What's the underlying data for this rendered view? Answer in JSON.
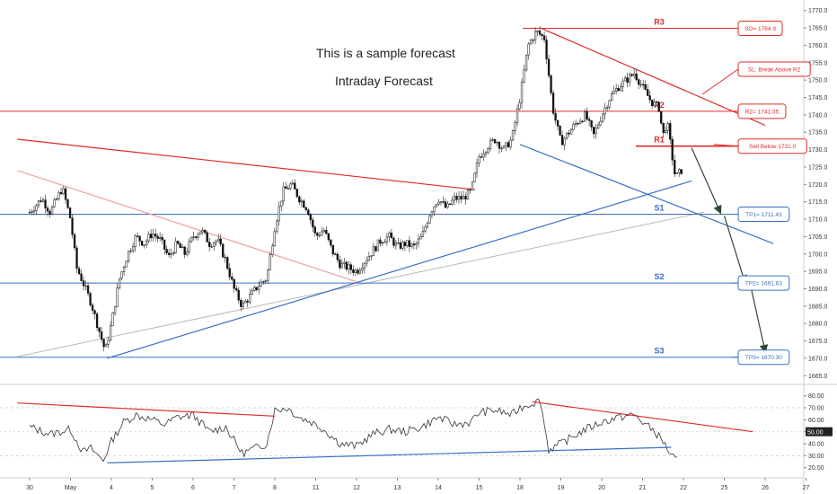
{
  "overlay": {
    "line1": "This is a sample forecast",
    "line2": "Intraday Forecast"
  },
  "colors": {
    "candle": "#000000",
    "red": "#e02a2a",
    "blue": "#3a6fc4",
    "grey": "#b8b8b8",
    "arrow": "#2e4a2e",
    "grid": "#eeeeee"
  },
  "chart_data": [
    {
      "type": "candlestick",
      "title": "",
      "ylim": [
        1663,
        1772
      ],
      "y_ticks": [
        1665.0,
        1670.0,
        1675.0,
        1680.0,
        1685.0,
        1690.0,
        1695.0,
        1700.0,
        1705.0,
        1710.0,
        1715.0,
        1720.0,
        1725.0,
        1730.0,
        1735.0,
        1740.0,
        1745.0,
        1750.0,
        1755.0,
        1760.0,
        1765.0,
        1770.0
      ],
      "x_tick_labels": [
        "30",
        "May",
        "4",
        "5",
        "6",
        "7",
        "8",
        "11",
        "12",
        "13",
        "14",
        "15",
        "18",
        "19",
        "20",
        "21",
        "22",
        "25",
        "26",
        "27"
      ],
      "x_tick_index": [
        0,
        1,
        2,
        3,
        4,
        5,
        6,
        7,
        8,
        9,
        10,
        11,
        12,
        13,
        14,
        15,
        16,
        17,
        18,
        19
      ],
      "price_path": [
        [
          0,
          1712
        ],
        [
          0.3,
          1716
        ],
        [
          0.5,
          1712
        ],
        [
          0.8,
          1719
        ],
        [
          1.0,
          1710
        ],
        [
          1.15,
          1696
        ],
        [
          1.3,
          1692
        ],
        [
          1.5,
          1686
        ],
        [
          1.7,
          1678
        ],
        [
          1.85,
          1672
        ],
        [
          2.0,
          1680
        ],
        [
          2.2,
          1693
        ],
        [
          2.4,
          1700
        ],
        [
          2.6,
          1705
        ],
        [
          2.8,
          1703
        ],
        [
          3.0,
          1706
        ],
        [
          3.2,
          1704
        ],
        [
          3.4,
          1699
        ],
        [
          3.6,
          1703
        ],
        [
          3.8,
          1700
        ],
        [
          4.0,
          1705
        ],
        [
          4.2,
          1707
        ],
        [
          4.4,
          1703
        ],
        [
          4.6,
          1704
        ],
        [
          4.8,
          1698
        ],
        [
          5.0,
          1690
        ],
        [
          5.2,
          1685
        ],
        [
          5.4,
          1688
        ],
        [
          5.6,
          1691
        ],
        [
          5.8,
          1693
        ],
        [
          6.0,
          1708
        ],
        [
          6.2,
          1718
        ],
        [
          6.4,
          1720
        ],
        [
          6.6,
          1716
        ],
        [
          6.8,
          1713
        ],
        [
          7.0,
          1705
        ],
        [
          7.2,
          1707
        ],
        [
          7.4,
          1701
        ],
        [
          7.6,
          1697
        ],
        [
          7.8,
          1696
        ],
        [
          8.0,
          1695
        ],
        [
          8.2,
          1698
        ],
        [
          8.4,
          1701
        ],
        [
          8.6,
          1704
        ],
        [
          8.8,
          1705
        ],
        [
          9.0,
          1702
        ],
        [
          9.2,
          1703
        ],
        [
          9.4,
          1702
        ],
        [
          9.6,
          1705
        ],
        [
          9.8,
          1712
        ],
        [
          10.0,
          1716
        ],
        [
          10.2,
          1713
        ],
        [
          10.4,
          1716
        ],
        [
          10.6,
          1716
        ],
        [
          10.8,
          1718
        ],
        [
          11.0,
          1728
        ],
        [
          11.2,
          1731
        ],
        [
          11.4,
          1733
        ],
        [
          11.6,
          1730
        ],
        [
          11.8,
          1733
        ],
        [
          12.0,
          1745
        ],
        [
          12.2,
          1760
        ],
        [
          12.4,
          1764
        ],
        [
          12.6,
          1762
        ],
        [
          12.8,
          1742
        ],
        [
          13.0,
          1732
        ],
        [
          13.2,
          1735
        ],
        [
          13.4,
          1738
        ],
        [
          13.6,
          1740
        ],
        [
          13.8,
          1734
        ],
        [
          14.0,
          1740
        ],
        [
          14.2,
          1745
        ],
        [
          14.4,
          1748
        ],
        [
          14.6,
          1750
        ],
        [
          14.8,
          1752
        ],
        [
          15.0,
          1748
        ],
        [
          15.2,
          1744
        ],
        [
          15.4,
          1742
        ],
        [
          15.5,
          1734
        ],
        [
          15.6,
          1738
        ],
        [
          15.8,
          1722
        ],
        [
          15.95,
          1724
        ]
      ],
      "annotations": [
        {
          "label": "R3",
          "kind": "resistance",
          "value": 1764.9
        },
        {
          "label": "R2",
          "kind": "resistance",
          "value": 1741.05
        },
        {
          "label": "R1",
          "kind": "resistance",
          "value": 1731.0
        },
        {
          "label": "S1",
          "kind": "support",
          "value": 1711.43
        },
        {
          "label": "S2",
          "kind": "support",
          "value": 1691.63
        },
        {
          "label": "S3",
          "kind": "support",
          "value": 1670.3
        }
      ],
      "callouts": [
        {
          "text": "SO= 1764.9",
          "kind": "red",
          "value": 1764.9
        },
        {
          "text": "SL: Break Above R2",
          "kind": "red",
          "value": 1749.5
        },
        {
          "text": "R2= 1741.05",
          "kind": "red",
          "value": 1741.05
        },
        {
          "text": "Sell Below 1731.0",
          "kind": "red",
          "value": 1731.0
        },
        {
          "text": "TP1= 1711.43",
          "kind": "blue",
          "value": 1711.43
        },
        {
          "text": "TP2= 1691.63",
          "kind": "blue",
          "value": 1691.63
        },
        {
          "text": "TP3= 1670.30",
          "kind": "blue",
          "value": 1670.3
        }
      ],
      "trendlines": [
        {
          "color": "red",
          "from": [
            -0.3,
            1733
          ],
          "to": [
            10.9,
            1718.5
          ]
        },
        {
          "color": "lightred",
          "from": [
            -0.3,
            1724
          ],
          "to": [
            8.0,
            1692
          ]
        },
        {
          "color": "blue",
          "from": [
            1.9,
            1670
          ],
          "to": [
            16.2,
            1721
          ]
        },
        {
          "color": "blue",
          "from": [
            12.0,
            1731.5
          ],
          "to": [
            18.2,
            1703
          ]
        },
        {
          "color": "red",
          "from": [
            12.5,
            1765
          ],
          "to": [
            18.0,
            1737
          ]
        },
        {
          "color": "grey",
          "from": [
            -0.3,
            1670.5
          ],
          "to": [
            16.5,
            1712
          ]
        }
      ],
      "forecast_arrows": [
        {
          "from": [
            16.2,
            1730.5
          ],
          "to": [
            16.9,
            1712
          ]
        },
        {
          "from": [
            17.0,
            1711
          ],
          "to": [
            17.5,
            1692
          ]
        },
        {
          "from": [
            17.65,
            1690.5
          ],
          "to": [
            18.0,
            1672
          ]
        }
      ],
      "current_price_label": ""
    },
    {
      "type": "line",
      "title": "",
      "ylim": [
        13,
        88
      ],
      "y_ticks": [
        20.0,
        30.0,
        40.0,
        50.0,
        60.0,
        70.0,
        80.0
      ],
      "highlight_label": "50.00",
      "rsi_path": [
        [
          0,
          54
        ],
        [
          0.5,
          48
        ],
        [
          1.0,
          52
        ],
        [
          1.3,
          33
        ],
        [
          1.5,
          36
        ],
        [
          1.8,
          26
        ],
        [
          2.0,
          42
        ],
        [
          2.3,
          58
        ],
        [
          2.6,
          64
        ],
        [
          3.0,
          60
        ],
        [
          3.3,
          56
        ],
        [
          3.6,
          62
        ],
        [
          4.0,
          64
        ],
        [
          4.4,
          50
        ],
        [
          4.8,
          54
        ],
        [
          5.2,
          32
        ],
        [
          5.5,
          36
        ],
        [
          5.8,
          40
        ],
        [
          6.0,
          68
        ],
        [
          6.3,
          70
        ],
        [
          6.6,
          62
        ],
        [
          6.9,
          58
        ],
        [
          7.2,
          52
        ],
        [
          7.6,
          40
        ],
        [
          8.0,
          38
        ],
        [
          8.4,
          48
        ],
        [
          8.8,
          52
        ],
        [
          9.2,
          50
        ],
        [
          9.6,
          54
        ],
        [
          10.0,
          62
        ],
        [
          10.4,
          56
        ],
        [
          10.8,
          58
        ],
        [
          11.0,
          66
        ],
        [
          11.4,
          68
        ],
        [
          11.8,
          64
        ],
        [
          12.0,
          70
        ],
        [
          12.3,
          74
        ],
        [
          12.5,
          76
        ],
        [
          12.7,
          35
        ],
        [
          13.0,
          40
        ],
        [
          13.3,
          46
        ],
        [
          13.6,
          52
        ],
        [
          14.0,
          58
        ],
        [
          14.4,
          62
        ],
        [
          14.8,
          64
        ],
        [
          15.0,
          58
        ],
        [
          15.3,
          50
        ],
        [
          15.5,
          42
        ],
        [
          15.7,
          30
        ],
        [
          15.9,
          24
        ]
      ],
      "trendlines": [
        {
          "color": "red",
          "from": [
            -0.3,
            74
          ],
          "to": [
            6.0,
            63
          ]
        },
        {
          "color": "blue",
          "from": [
            1.9,
            24
          ],
          "to": [
            15.7,
            37
          ]
        },
        {
          "color": "red",
          "from": [
            12.3,
            75
          ],
          "to": [
            17.7,
            50
          ]
        }
      ]
    }
  ]
}
